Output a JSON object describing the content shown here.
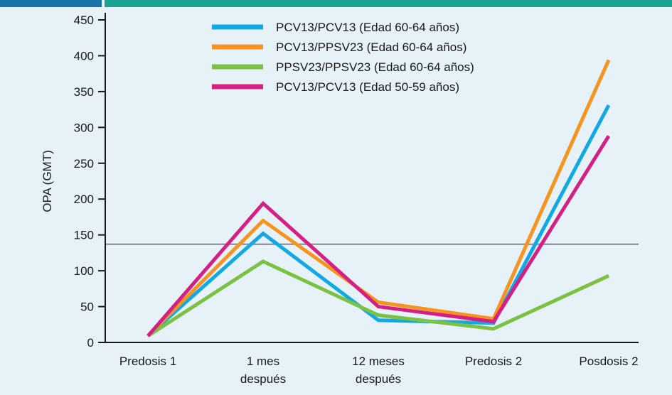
{
  "chart_data": {
    "type": "line",
    "title": "",
    "ylabel": "OPA (GMT)",
    "xlabel": "",
    "ylim": [
      0,
      450
    ],
    "yticks": [
      0,
      50,
      100,
      150,
      200,
      250,
      300,
      350,
      400,
      450
    ],
    "categories": [
      [
        "Predosis 1"
      ],
      [
        "1 mes",
        "después"
      ],
      [
        "12 meses",
        "después"
      ],
      [
        "Predosis 2"
      ],
      [
        "Posdosis 2"
      ]
    ],
    "reference_line": 137,
    "legend_position": "top-center",
    "series": [
      {
        "name": "PCV13/PCV13 (Edad 60-64 años)",
        "color": "#12a8e3",
        "values": [
          9,
          152,
          31,
          27,
          331
        ]
      },
      {
        "name": "PCV13/PPSV23 (Edad 60-64 años)",
        "color": "#f7941d",
        "values": [
          9,
          170,
          56,
          33,
          394
        ]
      },
      {
        "name": "PPSV23/PPSV23 (Edad 60-64 años)",
        "color": "#7cc242",
        "values": [
          9,
          113,
          38,
          19,
          93
        ]
      },
      {
        "name": "PCV13/PCV13 (Edad 50-59 años)",
        "color": "#d51f83",
        "values": [
          9,
          194,
          50,
          29,
          288
        ]
      }
    ]
  }
}
